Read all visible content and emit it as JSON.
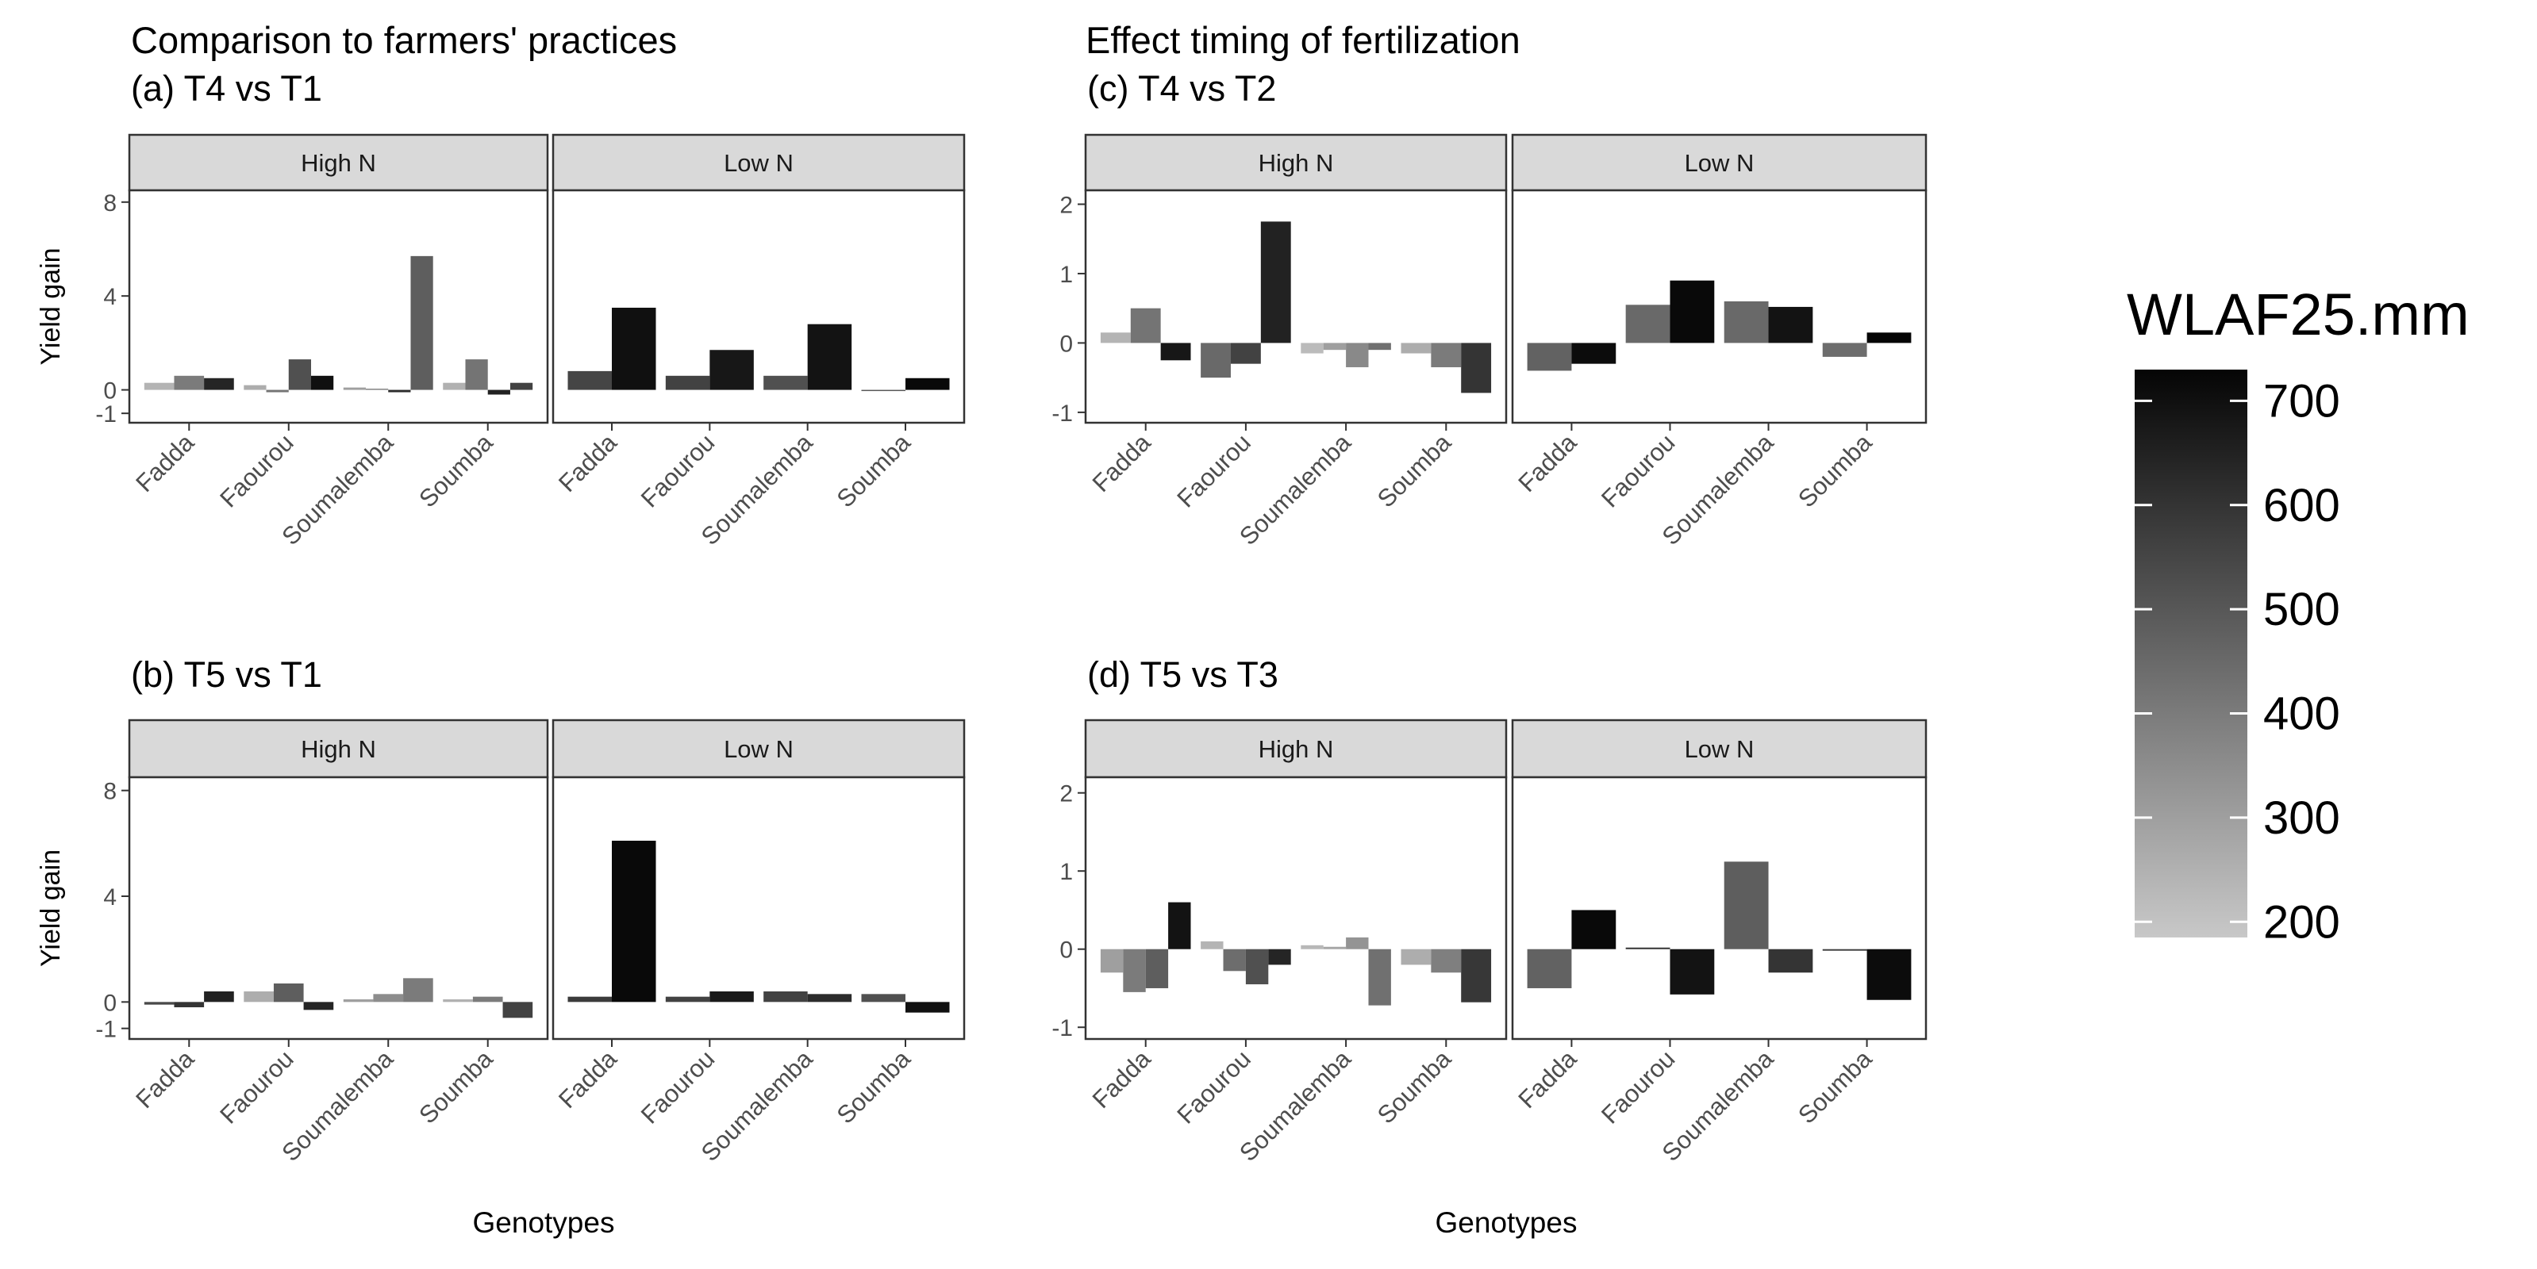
{
  "figure": {
    "section_titles": {
      "left": "Comparison to farmers' practices",
      "right": "Effect timing of fertilization"
    },
    "x_axis_title": "Genotypes",
    "legend": {
      "title": "WLAF25.mm",
      "ticks": [
        "200",
        "300",
        "400",
        "500",
        "600",
        "700"
      ],
      "range": [
        185,
        730
      ]
    }
  },
  "chart_data": [
    {
      "type": "bar",
      "title": "(a) T4 vs T1",
      "ylabel": "Yield gain",
      "xlabel": "",
      "ylim": [
        -1.4,
        8.5
      ],
      "yticks": [
        "-1",
        "0",
        "4",
        "8"
      ],
      "categories": [
        "Fadda",
        "Faourou",
        "Soumalemba",
        "Soumba"
      ],
      "facets": [
        {
          "label": "High N",
          "bars": [
            [
              [
                0.3,
                240
              ],
              [
                0.6,
                400
              ],
              [
                0.5,
                640
              ]
            ],
            [
              [
                0.2,
                260
              ],
              [
                -0.1,
                420
              ],
              [
                1.3,
                520
              ],
              [
                0.6,
                700
              ]
            ],
            [
              [
                0.1,
                300
              ],
              [
                0.05,
                380
              ],
              [
                -0.1,
                620
              ],
              [
                5.7,
                480
              ]
            ],
            [
              [
                0.3,
                250
              ],
              [
                1.3,
                420
              ],
              [
                -0.2,
                650
              ],
              [
                0.3,
                560
              ]
            ]
          ]
        },
        {
          "label": "Low N",
          "bars": [
            [
              [
                0.8,
                550
              ],
              [
                3.5,
                700
              ]
            ],
            [
              [
                0.6,
                560
              ],
              [
                1.7,
                680
              ]
            ],
            [
              [
                0.6,
                520
              ],
              [
                2.8,
                690
              ]
            ],
            [
              [
                0.0,
                500
              ],
              [
                0.5,
                720
              ]
            ]
          ]
        }
      ]
    },
    {
      "type": "bar",
      "title": "(c) T4 vs T2",
      "ylabel": "",
      "xlabel": "",
      "ylim": [
        -1.15,
        2.2
      ],
      "yticks": [
        "-1",
        "0",
        "1",
        "2"
      ],
      "categories": [
        "Fadda",
        "Faourou",
        "Soumalemba",
        "Soumba"
      ],
      "facets": [
        {
          "label": "High N",
          "bars": [
            [
              [
                0.15,
                240
              ],
              [
                0.5,
                420
              ],
              [
                -0.25,
                680
              ]
            ],
            [
              [
                -0.5,
                450
              ],
              [
                -0.3,
                560
              ],
              [
                1.75,
                650
              ]
            ],
            [
              [
                -0.15,
                220
              ],
              [
                -0.1,
                300
              ],
              [
                -0.35,
                360
              ],
              [
                -0.1,
                430
              ]
            ],
            [
              [
                -0.15,
                260
              ],
              [
                -0.35,
                400
              ],
              [
                -0.72,
                600
              ]
            ]
          ]
        },
        {
          "label": "Low N",
          "bars": [
            [
              [
                -0.4,
                470
              ],
              [
                -0.3,
                710
              ]
            ],
            [
              [
                0.55,
                450
              ],
              [
                0.9,
                720
              ]
            ],
            [
              [
                0.6,
                450
              ],
              [
                0.52,
                690
              ]
            ],
            [
              [
                -0.2,
                440
              ],
              [
                0.15,
                730
              ]
            ]
          ]
        }
      ]
    },
    {
      "type": "bar",
      "title": "(b) T5 vs T1",
      "ylabel": "Yield gain",
      "xlabel": "Genotypes",
      "ylim": [
        -1.4,
        8.5
      ],
      "yticks": [
        "-1",
        "0",
        "4",
        "8"
      ],
      "categories": [
        "Fadda",
        "Faourou",
        "Soumalemba",
        "Soumba"
      ],
      "facets": [
        {
          "label": "High N",
          "bars": [
            [
              [
                -0.1,
                540
              ],
              [
                -0.2,
                600
              ],
              [
                0.4,
                650
              ]
            ],
            [
              [
                0.4,
                260
              ],
              [
                0.7,
                480
              ],
              [
                -0.3,
                640
              ]
            ],
            [
              [
                0.1,
                300
              ],
              [
                0.3,
                350
              ],
              [
                0.9,
                400
              ]
            ],
            [
              [
                0.1,
                250
              ],
              [
                0.2,
                400
              ],
              [
                -0.6,
                560
              ]
            ]
          ]
        },
        {
          "label": "Low N",
          "bars": [
            [
              [
                0.2,
                580
              ],
              [
                6.1,
                720
              ]
            ],
            [
              [
                0.2,
                560
              ],
              [
                0.4,
                670
              ]
            ],
            [
              [
                0.4,
                560
              ],
              [
                0.3,
                620
              ]
            ],
            [
              [
                0.3,
                520
              ],
              [
                -0.4,
                700
              ]
            ]
          ]
        }
      ]
    },
    {
      "type": "bar",
      "title": "(d) T5 vs T3",
      "ylabel": "",
      "xlabel": "Genotypes",
      "ylim": [
        -1.15,
        2.2
      ],
      "yticks": [
        "-1",
        "0",
        "1",
        "2"
      ],
      "categories": [
        "Fadda",
        "Faourou",
        "Soumalemba",
        "Soumba"
      ],
      "facets": [
        {
          "label": "High N",
          "bars": [
            [
              [
                -0.3,
                300
              ],
              [
                -0.55,
                400
              ],
              [
                -0.5,
                480
              ],
              [
                0.6,
                690
              ]
            ],
            [
              [
                0.1,
                240
              ],
              [
                -0.28,
                440
              ],
              [
                -0.45,
                520
              ],
              [
                -0.2,
                640
              ]
            ],
            [
              [
                0.05,
                230
              ],
              [
                0.03,
                280
              ],
              [
                0.15,
                330
              ],
              [
                -0.72,
                430
              ]
            ],
            [
              [
                -0.2,
                260
              ],
              [
                -0.3,
                390
              ],
              [
                -0.68,
                590
              ]
            ]
          ]
        },
        {
          "label": "Low N",
          "bars": [
            [
              [
                -0.5,
                470
              ],
              [
                0.5,
                720
              ]
            ],
            [
              [
                0.02,
                610
              ],
              [
                -0.58,
                690
              ]
            ],
            [
              [
                1.12,
                480
              ],
              [
                -0.3,
                600
              ]
            ],
            [
              [
                -0.02,
                570
              ],
              [
                -0.65,
                710
              ]
            ]
          ]
        }
      ]
    }
  ]
}
